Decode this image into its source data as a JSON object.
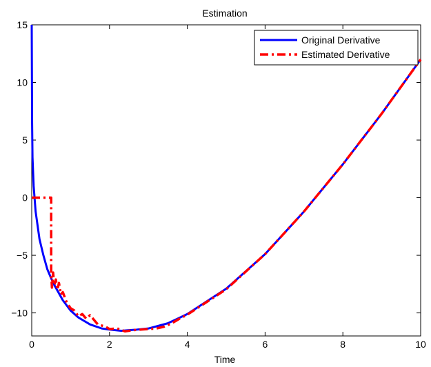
{
  "chart_data": {
    "type": "line",
    "title": "Estimation",
    "xlabel": "Time",
    "ylabel": "",
    "xlim": [
      0,
      10
    ],
    "ylim": [
      -12,
      15
    ],
    "xticks": [
      0,
      2,
      4,
      6,
      8,
      10
    ],
    "yticks": [
      -10,
      -5,
      0,
      5,
      10,
      15
    ],
    "grid": false,
    "legend": {
      "placement": "top-right"
    },
    "series": [
      {
        "name": "Original Derivative",
        "color": "#0000ff",
        "style": "solid",
        "x": [
          0.0,
          0.01,
          0.02,
          0.05,
          0.1,
          0.2,
          0.3,
          0.4,
          0.5,
          0.6,
          0.8,
          1.0,
          1.2,
          1.5,
          1.8,
          2.0,
          2.3,
          2.5,
          2.7,
          3.0,
          3.5,
          4.0,
          5.0,
          6.0,
          7.0,
          8.0,
          9.0,
          10.0
        ],
        "y": [
          15.0,
          6.5,
          3.5,
          1.0,
          -1.2,
          -3.6,
          -5.0,
          -6.2,
          -7.0,
          -7.7,
          -8.9,
          -9.8,
          -10.4,
          -11.0,
          -11.35,
          -11.45,
          -11.55,
          -11.5,
          -11.45,
          -11.35,
          -10.9,
          -10.1,
          -7.9,
          -4.9,
          -1.2,
          2.9,
          7.3,
          12.0
        ]
      },
      {
        "name": "Estimated Derivative",
        "color": "#ff0000",
        "style": "dash-dot",
        "x": [
          0.0,
          0.1,
          0.2,
          0.3,
          0.4,
          0.5,
          0.5,
          0.52,
          0.55,
          0.58,
          0.62,
          0.66,
          0.7,
          0.75,
          0.8,
          0.9,
          1.0,
          1.1,
          1.2,
          1.3,
          1.4,
          1.5,
          1.6,
          1.7,
          1.8,
          1.9,
          2.0,
          2.2,
          2.4,
          2.6,
          2.8,
          3.0,
          3.2,
          3.4,
          3.6,
          3.8,
          4.0,
          5.0,
          6.0,
          7.0,
          8.0,
          9.0,
          10.0
        ],
        "y": [
          0.0,
          0.0,
          0.0,
          0.0,
          0.0,
          0.0,
          -6.6,
          -7.8,
          -6.5,
          -7.6,
          -7.1,
          -8.0,
          -7.4,
          -8.4,
          -8.2,
          -9.1,
          -9.6,
          -9.8,
          -10.3,
          -10.1,
          -10.5,
          -10.2,
          -10.6,
          -11.0,
          -11.1,
          -11.2,
          -11.4,
          -11.35,
          -11.6,
          -11.5,
          -11.45,
          -11.4,
          -11.35,
          -11.2,
          -10.9,
          -10.5,
          -10.15,
          -7.95,
          -4.9,
          -1.2,
          2.9,
          7.3,
          12.0
        ]
      }
    ]
  }
}
